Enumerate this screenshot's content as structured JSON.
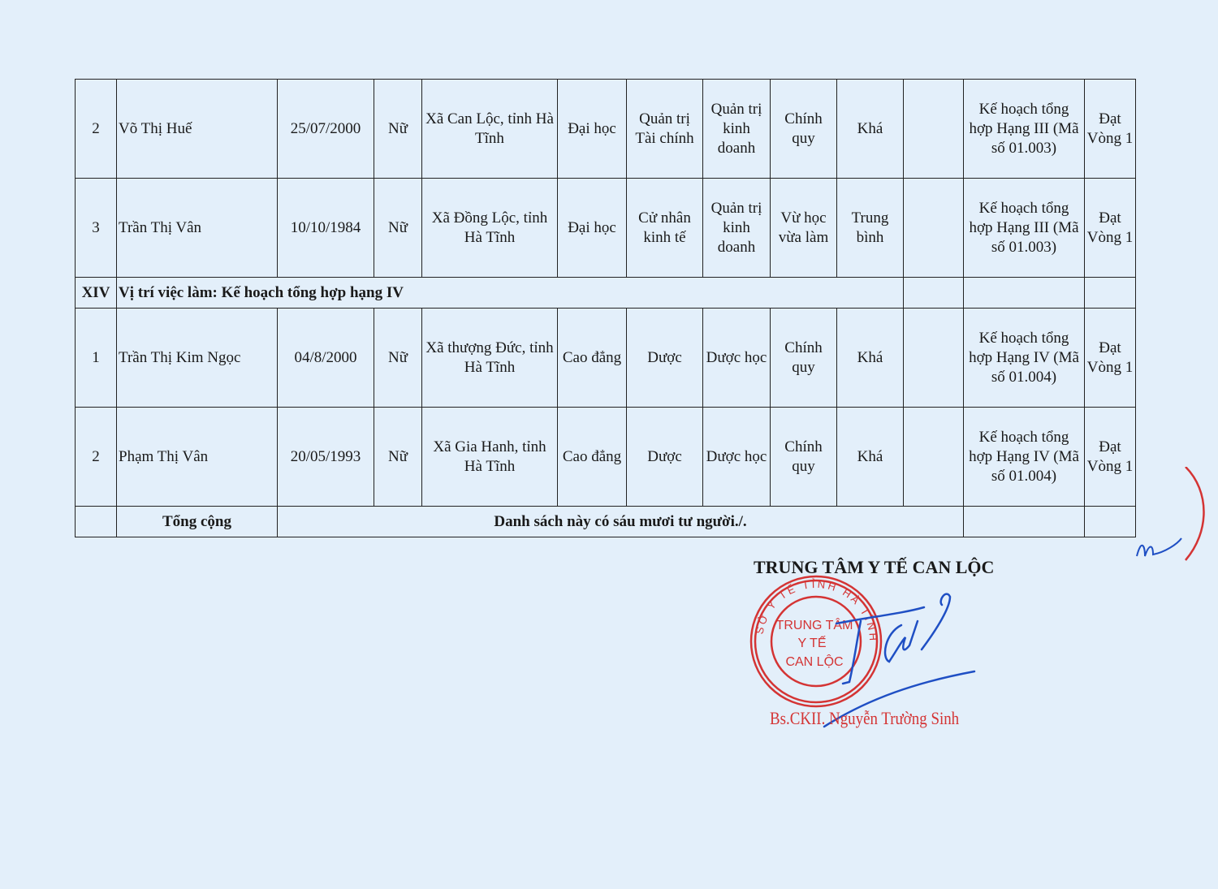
{
  "table": {
    "rows": [
      {
        "stt": "2",
        "name": "Võ Thị Huế",
        "dob": "25/07/2000",
        "gender": "Nữ",
        "address": "Xã Can Lộc, tỉnh Hà Tĩnh",
        "level": "Đại học",
        "major": "Quản trị Tài chính",
        "field": "Quản trị kinh doanh",
        "mode": "Chính quy",
        "grade": "Khá",
        "note": "",
        "position": "Kế hoạch tổng hợp Hạng III (Mã số 01.003)",
        "result": "Đạt Vòng 1"
      },
      {
        "stt": "3",
        "name": "Trần Thị Vân",
        "dob": "10/10/1984",
        "gender": "Nữ",
        "address": "Xã Đồng Lộc, tỉnh Hà Tĩnh",
        "level": "Đại học",
        "major": "Cử nhân kinh tế",
        "field": "Quản trị kinh doanh",
        "mode": "Vừ học vừa làm",
        "grade": "Trung bình",
        "note": "",
        "position": "Kế hoạch tổng hợp Hạng III (Mã số 01.003)",
        "result": "Đạt Vòng 1"
      }
    ],
    "section": {
      "number": "XIV",
      "title": "Vị trí việc làm: Kế hoạch tổng hợp hạng IV"
    },
    "section_rows": [
      {
        "stt": "1",
        "name": "Trần Thị Kim Ngọc",
        "dob": "04/8/2000",
        "gender": "Nữ",
        "address": "Xã thượng Đức, tỉnh Hà Tĩnh",
        "level": "Cao đẳng",
        "major": "Dược",
        "field": "Dược học",
        "mode": "Chính quy",
        "grade": "Khá",
        "note": "",
        "position": "Kế hoạch tổng hợp Hạng IV (Mã số 01.004)",
        "result": "Đạt Vòng 1"
      },
      {
        "stt": "2",
        "name": "Phạm Thị Vân",
        "dob": "20/05/1993",
        "gender": "Nữ",
        "address": "Xã Gia Hanh, tỉnh Hà Tĩnh",
        "level": "Cao đẳng",
        "major": "Dược",
        "field": "Dược học",
        "mode": "Chính quy",
        "grade": "Khá",
        "note": "",
        "position": "Kế hoạch tổng hợp Hạng IV (Mã số 01.004)",
        "result": "Đạt Vòng 1"
      }
    ],
    "total_label": "Tổng cộng",
    "total_text": "Danh sách này có sáu mươi tư người./."
  },
  "signature": {
    "organization": "TRUNG TÂM Y TẾ CAN LỘC",
    "signer": "Bs.CKII. Nguyễn Trường Sinh",
    "stamp_lines": [
      "TRUNG TÂM",
      "Y TẾ",
      "CAN LỘC"
    ],
    "stamp_ring": "SỞ Y TẾ TỈNH HÀ TĨNH",
    "stamp_color": "#d43434",
    "ink_color": "#1f4fc4"
  }
}
